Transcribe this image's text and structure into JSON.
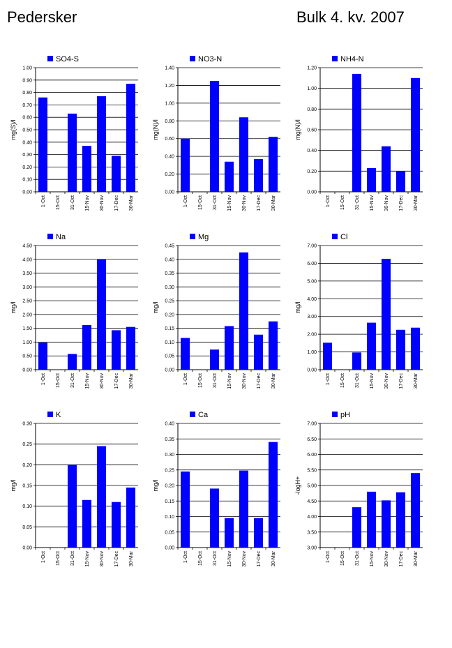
{
  "header": {
    "site": "Pedersker",
    "period": "Bulk  4. kv. 2007"
  },
  "colors": {
    "bar": "#0000ff",
    "grid": "#000000",
    "background": "#ffffff"
  },
  "chart_data": [
    {
      "type": "bar",
      "series_name": "SO4-S",
      "ylabel": "mg(S)/l",
      "categories": [
        "1-Oct",
        "15-Oct",
        "31-Oct",
        "15-Nov",
        "30-Nov",
        "17-Dec",
        "30-Mar"
      ],
      "values": [
        0.76,
        null,
        0.63,
        0.37,
        0.77,
        0.29,
        0.87
      ],
      "ylim": [
        0,
        1.0
      ],
      "yticks": [
        "0.00",
        "0.10",
        "0.20",
        "0.30",
        "0.40",
        "0.50",
        "0.60",
        "0.70",
        "0.80",
        "0.90",
        "1.00"
      ]
    },
    {
      "type": "bar",
      "series_name": "NO3-N",
      "ylabel": "mg(N)/l",
      "categories": [
        "1-Oct",
        "15-Oct",
        "31-Oct",
        "15-Nov",
        "30-Nov",
        "17-Dec",
        "30-Mar"
      ],
      "values": [
        0.6,
        null,
        1.25,
        0.34,
        0.84,
        0.37,
        0.62
      ],
      "ylim": [
        0,
        1.4
      ],
      "yticks": [
        "0.00",
        "0.20",
        "0.40",
        "0.60",
        "0.80",
        "1.00",
        "1.20",
        "1.40"
      ]
    },
    {
      "type": "bar",
      "series_name": "NH4-N",
      "ylabel": "mg(N)/l",
      "categories": [
        "1-Oct",
        "15-Oct",
        "31-Oct",
        "15-Nov",
        "30-Nov",
        "17-Dec",
        "30-Mar"
      ],
      "values": [
        null,
        null,
        1.14,
        0.23,
        0.44,
        0.2,
        1.1
      ],
      "ylim": [
        0,
        1.2
      ],
      "yticks": [
        "0.00",
        "0.20",
        "0.40",
        "0.60",
        "0.80",
        "1.00",
        "1.20"
      ]
    },
    {
      "type": "bar",
      "series_name": "Na",
      "ylabel": "mg/l",
      "categories": [
        "1-Oct",
        "15-Oct",
        "31-Oct",
        "15-Nov",
        "30-Nov",
        "17-Dec",
        "30-Mar"
      ],
      "values": [
        0.98,
        null,
        0.57,
        1.62,
        4.0,
        1.43,
        1.55
      ],
      "ylim": [
        0,
        4.5
      ],
      "yticks": [
        "0.00",
        "0.50",
        "1.00",
        "1.50",
        "2.00",
        "2.50",
        "3.00",
        "3.50",
        "4.00",
        "4.50"
      ]
    },
    {
      "type": "bar",
      "series_name": "Mg",
      "ylabel": "mg/l",
      "categories": [
        "1-Oct",
        "15-Oct",
        "31-Oct",
        "15-Nov",
        "30-Nov",
        "17-Dec",
        "30-Mar"
      ],
      "values": [
        0.115,
        null,
        0.073,
        0.158,
        0.425,
        0.127,
        0.175
      ],
      "ylim": [
        0,
        0.45
      ],
      "yticks": [
        "0.00",
        "0.05",
        "0.10",
        "0.15",
        "0.20",
        "0.25",
        "0.30",
        "0.35",
        "0.40",
        "0.45"
      ]
    },
    {
      "type": "bar",
      "series_name": "Cl",
      "ylabel": "mg/l",
      "categories": [
        "1-Oct",
        "15-Oct",
        "31-Oct",
        "15-Nov",
        "30-Nov",
        "17-Dec",
        "30-Mar"
      ],
      "values": [
        1.52,
        null,
        0.97,
        2.65,
        6.25,
        2.25,
        2.37
      ],
      "ylim": [
        0,
        7.0
      ],
      "yticks": [
        "0.00",
        "1.00",
        "2.00",
        "3.00",
        "4.00",
        "5.00",
        "6.00",
        "7.00"
      ]
    },
    {
      "type": "bar",
      "series_name": "K",
      "ylabel": "mg/l",
      "categories": [
        "1-Oct",
        "15-Oct",
        "31-Oct",
        "15-Nov",
        "30-Nov",
        "17-Dec",
        "30-Mar"
      ],
      "values": [
        null,
        null,
        0.2,
        0.115,
        0.245,
        0.11,
        0.145
      ],
      "ylim": [
        0,
        0.3
      ],
      "yticks": [
        "0.00",
        "0.05",
        "0.10",
        "0.15",
        "0.20",
        "0.25",
        "0.30"
      ]
    },
    {
      "type": "bar",
      "series_name": "Ca",
      "ylabel": "mg/l",
      "categories": [
        "1-Oct",
        "15-Oct",
        "31-Oct",
        "15-Nov",
        "30-Nov",
        "17-Dec",
        "30-Mar"
      ],
      "values": [
        0.245,
        null,
        0.19,
        0.095,
        0.248,
        0.095,
        0.34
      ],
      "ylim": [
        0,
        0.4
      ],
      "yticks": [
        "0.00",
        "0.05",
        "0.10",
        "0.15",
        "0.20",
        "0.25",
        "0.30",
        "0.35",
        "0.40"
      ]
    },
    {
      "type": "bar",
      "series_name": "pH",
      "ylabel": "-logH+",
      "categories": [
        "1-Oct",
        "15-Oct",
        "31-Oct",
        "15-Nov",
        "30-Nov",
        "17-Dec",
        "30-Mar"
      ],
      "values": [
        null,
        null,
        4.3,
        4.8,
        4.52,
        4.78,
        5.4
      ],
      "ylim": [
        3.0,
        7.0
      ],
      "yticks": [
        "3.00",
        "3.50",
        "4.00",
        "4.50",
        "5.00",
        "5.50",
        "6.00",
        "6.50",
        "7.00"
      ]
    }
  ]
}
